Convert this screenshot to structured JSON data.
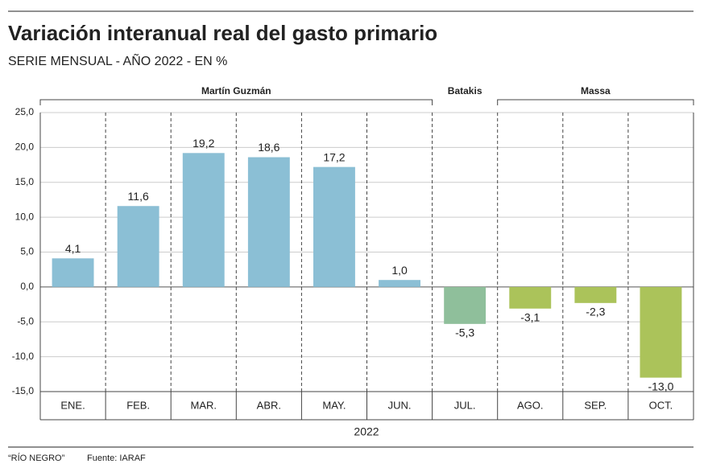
{
  "chart_data": {
    "type": "bar",
    "title": "Variación interanual real del gasto primario",
    "subtitle": "SERIE MENSUAL - AÑO 2022 - EN %",
    "x_label": "2022",
    "categories": [
      "ENE.",
      "FEB.",
      "MAR.",
      "ABR.",
      "MAY.",
      "JUN.",
      "JUL.",
      "AGO.",
      "SEP.",
      "OCT."
    ],
    "values": [
      4.1,
      11.6,
      19.2,
      18.6,
      17.2,
      1.0,
      -5.3,
      -3.1,
      -2.3,
      -13.0
    ],
    "value_labels": [
      "4,1",
      "11,6",
      "19,2",
      "18,6",
      "17,2",
      "1,0",
      "-5,3",
      "-3,1",
      "-2,3",
      "-13,0"
    ],
    "colors": [
      "#8bbfd5",
      "#8bbfd5",
      "#8bbfd5",
      "#8bbfd5",
      "#8bbfd5",
      "#8bbfd5",
      "#8fbf9b",
      "#abc35a",
      "#abc35a",
      "#abc35a"
    ],
    "groups": [
      {
        "name": "Martín Guzmán",
        "span": 6
      },
      {
        "name": "Batakis",
        "span": 1
      },
      {
        "name": "Massa",
        "span": 3
      }
    ],
    "ylim": [
      -15,
      25
    ],
    "yticks": [
      {
        "value": 25,
        "label": "25,0"
      },
      {
        "value": 20,
        "label": "20,0"
      },
      {
        "value": 15,
        "label": "15,0"
      },
      {
        "value": 10,
        "label": "10,0"
      },
      {
        "value": 5,
        "label": "5,0"
      },
      {
        "value": 0,
        "label": "0,0"
      },
      {
        "value": -5,
        "label": "-5,0"
      },
      {
        "value": -10,
        "label": "-10,0"
      },
      {
        "value": -15,
        "label": "-15,0"
      }
    ],
    "grid": true
  },
  "footer": {
    "media": "“RÍO NEGRO”",
    "source": "Fuente: IARAF"
  }
}
